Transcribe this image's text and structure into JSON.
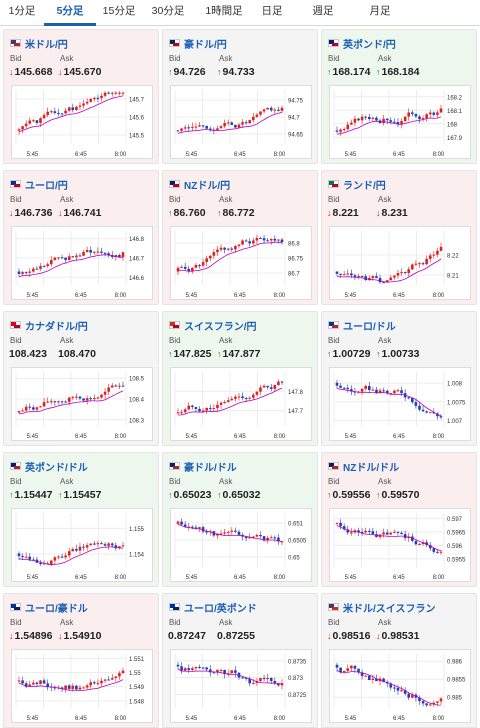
{
  "tabs": [
    "1分足",
    "5分足",
    "15分足",
    "30分足",
    "1時間足",
    "日足",
    "週足",
    "月足"
  ],
  "active_tab": 1,
  "labels": {
    "bid": "Bid",
    "ask": "Ask"
  },
  "pairs": [
    {
      "name": "米ドル/円",
      "bid": "145.668",
      "ask": "145.670",
      "bid_dir": "down",
      "ask_dir": "down",
      "bg": "down",
      "flag": [
        "#3c3b6e",
        "#b22234"
      ],
      "yticks": [
        "145.7",
        "145.6",
        "145.5"
      ],
      "ylim": [
        145.45,
        145.75
      ],
      "trend": "up",
      "seed": 1,
      "xticks": [
        "5:45",
        "6:45",
        "8:00"
      ]
    },
    {
      "name": "豪ドル/円",
      "bid": "94.726",
      "ask": "94.733",
      "bid_dir": "up",
      "ask_dir": "up",
      "bg": "neutral",
      "flag": [
        "#012169",
        "#bc002d"
      ],
      "yticks": [
        "94.75",
        "94.7",
        "94.65"
      ],
      "ylim": [
        94.62,
        94.78
      ],
      "trend": "upflat",
      "seed": 2,
      "xticks": [
        "5:45",
        "6:45",
        "8:00"
      ]
    },
    {
      "name": "英ポンド/円",
      "bid": "168.174",
      "ask": "168.184",
      "bid_dir": "up",
      "ask_dir": "up",
      "bg": "up",
      "flag": [
        "#012169",
        "#bc002d"
      ],
      "yticks": [
        "168.2",
        "168.1",
        "168",
        "167.9"
      ],
      "ylim": [
        167.85,
        168.25
      ],
      "trend": "up",
      "seed": 3,
      "xticks": [
        "5:45",
        "6:45",
        "8:00"
      ]
    },
    {
      "name": "ユーロ/円",
      "bid": "146.736",
      "ask": "146.741",
      "bid_dir": "down",
      "ask_dir": "down",
      "bg": "down",
      "flag": [
        "#003399",
        "#bc002d"
      ],
      "yticks": [
        "146.8",
        "146.7",
        "146.6"
      ],
      "ylim": [
        146.56,
        146.84
      ],
      "trend": "up",
      "seed": 4,
      "xticks": [
        "5:45",
        "6:45",
        "8:00"
      ]
    },
    {
      "name": "NZドル/円",
      "bid": "86.760",
      "ask": "86.772",
      "bid_dir": "up",
      "ask_dir": "up",
      "bg": "down",
      "flag": [
        "#012169",
        "#bc002d"
      ],
      "yticks": [
        "86.8",
        "86.75",
        "86.7"
      ],
      "ylim": [
        86.66,
        86.84
      ],
      "trend": "upflat",
      "seed": 5,
      "xticks": [
        "5:45",
        "6:45",
        "8:00"
      ]
    },
    {
      "name": "ランド/円",
      "bid": "8.221",
      "ask": "8.231",
      "bid_dir": "down",
      "ask_dir": "down",
      "bg": "down",
      "flag": [
        "#007a4d",
        "#bc002d"
      ],
      "yticks": [
        "8.22",
        "8.21"
      ],
      "ylim": [
        8.205,
        8.232
      ],
      "trend": "vup",
      "seed": 6,
      "xticks": [
        "5:45",
        "6:45",
        "8:00"
      ]
    },
    {
      "name": "カナダドル/円",
      "bid": "108.423",
      "ask": "108.470",
      "bid_dir": "none",
      "ask_dir": "none",
      "bg": "neutral",
      "flag": [
        "#d80621",
        "#bc002d"
      ],
      "yticks": [
        "108.5",
        "108.4",
        "108.3"
      ],
      "ylim": [
        108.27,
        108.53
      ],
      "trend": "up",
      "seed": 7,
      "xticks": [
        "5:45",
        "6:45",
        "8:00"
      ]
    },
    {
      "name": "スイスフラン/円",
      "bid": "147.825",
      "ask": "147.877",
      "bid_dir": "up",
      "ask_dir": "up",
      "bg": "up",
      "flag": [
        "#d52b1e",
        "#bc002d"
      ],
      "yticks": [
        "147.8",
        "147.7"
      ],
      "ylim": [
        147.62,
        147.9
      ],
      "trend": "up",
      "seed": 8,
      "xticks": [
        "5:45",
        "6:45",
        "8:00"
      ]
    },
    {
      "name": "ユーロ/ドル",
      "bid": "1.00729",
      "ask": "1.00733",
      "bid_dir": "up",
      "ask_dir": "up",
      "bg": "neutral",
      "flag": [
        "#003399",
        "#b22234"
      ],
      "yticks": [
        "1.008",
        "1.0075",
        "1.007"
      ],
      "ylim": [
        1.00685,
        1.0083
      ],
      "trend": "down",
      "seed": 9,
      "xticks": [
        "5:45",
        "6:45",
        "8:00"
      ]
    },
    {
      "name": "英ポンド/ドル",
      "bid": "1.15447",
      "ask": "1.15457",
      "bid_dir": "up",
      "ask_dir": "up",
      "bg": "up",
      "flag": [
        "#012169",
        "#b22234"
      ],
      "yticks": [
        "1.155",
        "1.154"
      ],
      "ylim": [
        1.1535,
        1.1556
      ],
      "trend": "upflat",
      "seed": 10,
      "xticks": [
        "5:45",
        "6:45",
        "8:00"
      ]
    },
    {
      "name": "豪ドル/ドル",
      "bid": "0.65023",
      "ask": "0.65032",
      "bid_dir": "up",
      "ask_dir": "up",
      "bg": "up",
      "flag": [
        "#012169",
        "#b22234"
      ],
      "yticks": [
        "0.651",
        "0.6505",
        "0.65"
      ],
      "ylim": [
        0.6497,
        0.6513
      ],
      "trend": "down",
      "seed": 11,
      "xticks": [
        "5:45",
        "6:45",
        "8:00"
      ]
    },
    {
      "name": "NZドル/ドル",
      "bid": "0.59556",
      "ask": "0.59570",
      "bid_dir": "up",
      "ask_dir": "up",
      "bg": "down",
      "flag": [
        "#012169",
        "#b22234"
      ],
      "yticks": [
        "0.597",
        "0.5965",
        "0.596",
        "0.5955"
      ],
      "ylim": [
        0.5952,
        0.5972
      ],
      "trend": "down",
      "seed": 12,
      "xticks": [
        "5:45",
        "6:45",
        "8:00"
      ]
    },
    {
      "name": "ユーロ/豪ドル",
      "bid": "1.54896",
      "ask": "1.54910",
      "bid_dir": "down",
      "ask_dir": "down",
      "bg": "down",
      "flag": [
        "#003399",
        "#012169"
      ],
      "yticks": [
        "1.551",
        "1.55",
        "1.549",
        "1.548"
      ],
      "ylim": [
        1.5475,
        1.5513
      ],
      "trend": "flat",
      "seed": 13,
      "xticks": [
        "5:45",
        "6:45",
        "8:00"
      ]
    },
    {
      "name": "ユーロ/英ポンド",
      "bid": "0.87247",
      "ask": "0.87255",
      "bid_dir": "none",
      "ask_dir": "none",
      "bg": "neutral",
      "flag": [
        "#003399",
        "#012169"
      ],
      "yticks": [
        "0.8735",
        "0.873",
        "0.8725"
      ],
      "ylim": [
        0.8721,
        0.8737
      ],
      "trend": "down",
      "seed": 14,
      "xticks": [
        "5:45",
        "6:45",
        "8:00"
      ]
    },
    {
      "name": "米ドル/スイスフラン",
      "bid": "0.98516",
      "ask": "0.98531",
      "bid_dir": "down",
      "ask_dir": "down",
      "bg": "neutral",
      "flag": [
        "#3c3b6e",
        "#d52b1e"
      ],
      "yticks": [
        "0.986",
        "0.9855",
        "0.985"
      ],
      "ylim": [
        0.9847,
        0.9862
      ],
      "trend": "down",
      "seed": 15,
      "xticks": [
        "5:45",
        "6:45",
        "8:00"
      ]
    }
  ]
}
